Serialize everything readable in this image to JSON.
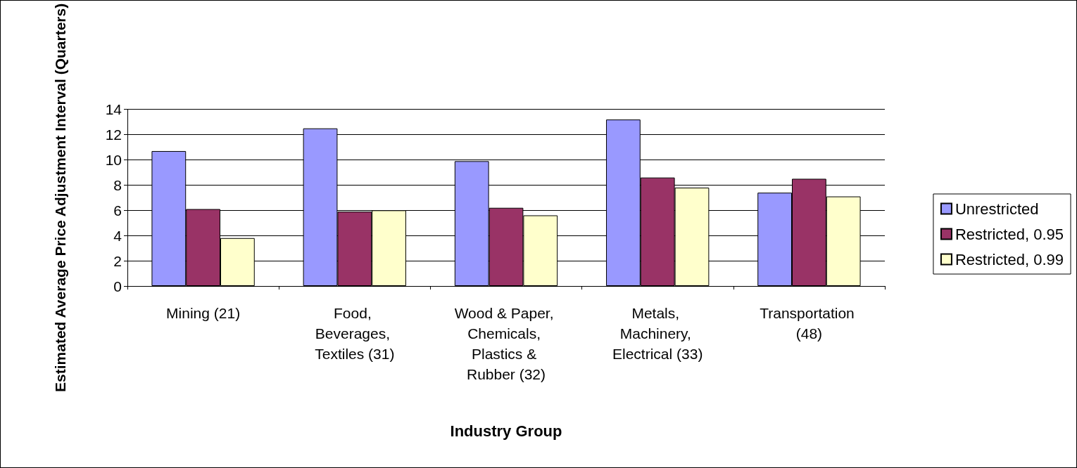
{
  "chart_data": {
    "type": "bar",
    "xlabel": "Industry Group",
    "ylabel": "Estimated Average Price Adjustment Interval (Quarters)",
    "categories": [
      "Mining (21)",
      "Food, Beverages, Textiles (31)",
      "Wood & Paper, Chemicals, Plastics & Rubber (32)",
      "Metals, Machinery, Electrical (33)",
      "Transportation (48)"
    ],
    "series": [
      {
        "name": "Unrestricted",
        "color": "#9999ff",
        "values": [
          10.7,
          12.5,
          9.9,
          13.2,
          7.4
        ]
      },
      {
        "name": "Restricted, 0.95",
        "color": "#993366",
        "values": [
          6.1,
          5.9,
          6.2,
          8.6,
          8.5
        ]
      },
      {
        "name": "Restricted, 0.99",
        "color": "#ffffcc",
        "values": [
          3.8,
          6.0,
          5.6,
          7.8,
          7.1
        ]
      }
    ],
    "ylim": [
      0,
      14
    ],
    "yticks": [
      0,
      2,
      4,
      6,
      8,
      10,
      12,
      14
    ],
    "grid": "y",
    "legend": "right"
  }
}
